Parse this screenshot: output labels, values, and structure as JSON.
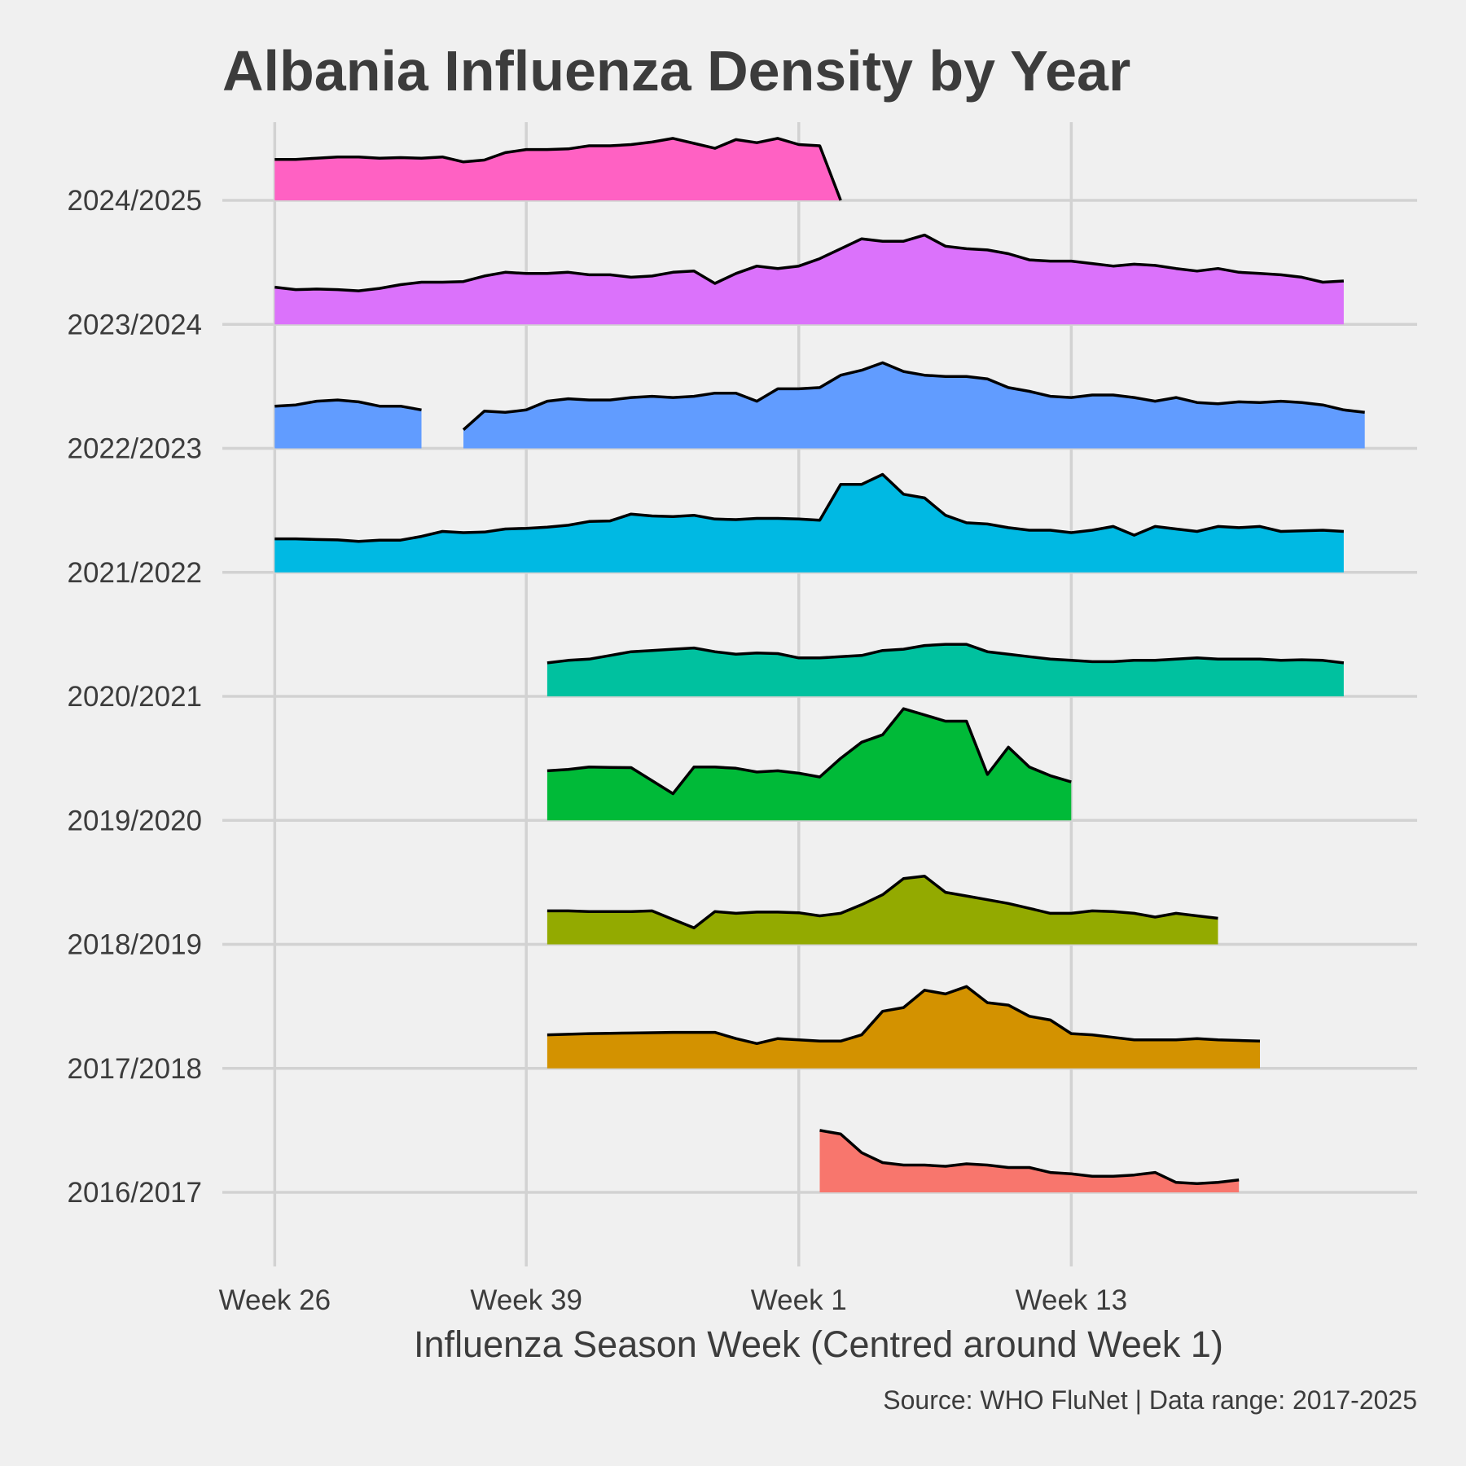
{
  "chart_data": {
    "type": "area",
    "title": "Albania Influenza Density by Year",
    "xlabel": "Influenza Season Week (Centred around Week 1)",
    "ylabel": "",
    "caption": "Source: WHO FluNet | Data range: 2017-2025",
    "x_ticks": [
      {
        "label": "Week 26",
        "index": 0
      },
      {
        "label": "Week 39",
        "index": 12
      },
      {
        "label": "Week 1",
        "index": 25
      },
      {
        "label": "Week 13",
        "index": 38
      }
    ],
    "x_range": [
      -2.5,
      54.5
    ],
    "ridge_height_units": [
      0,
      1.15
    ],
    "grid": true,
    "legend": "none",
    "series": [
      {
        "name": "2016/2017",
        "color": "#F8766D",
        "start": 26,
        "values": [
          0.5,
          0.47,
          0.32,
          0.24,
          0.22,
          0.22,
          0.21,
          0.23,
          0.22,
          0.2,
          0.2,
          0.16,
          0.15,
          0.13,
          0.13,
          0.14,
          0.16,
          0.08,
          0.07,
          0.08,
          0.1
        ]
      },
      {
        "name": "2017/2018",
        "color": "#D39200",
        "start": 13,
        "values": [
          0.27,
          null,
          0.28,
          null,
          0.285,
          null,
          0.29,
          null,
          0.29,
          0.24,
          0.2,
          0.24,
          0.23,
          0.22,
          0.22,
          0.27,
          0.46,
          0.49,
          0.63,
          0.6,
          0.66,
          0.53,
          0.51,
          0.42,
          0.39,
          0.28,
          0.27,
          0.25,
          0.23,
          0.23,
          0.23,
          0.24,
          0.23,
          0.225,
          0.22
        ]
      },
      {
        "name": "2018/2019",
        "color": "#93AA00",
        "start": 13,
        "values": [
          0.27,
          0.27,
          0.265,
          null,
          0.265,
          0.27,
          null,
          null,
          0.265,
          0.25,
          0.26,
          0.26,
          0.255,
          0.23,
          0.25,
          0.32,
          0.4,
          0.53,
          0.55,
          0.42,
          0.39,
          0.36,
          0.33,
          0.29,
          0.25,
          0.25,
          0.27,
          0.265,
          0.25,
          0.22,
          0.25,
          0.23,
          0.21
        ]
      },
      {
        "name": "2019/2020",
        "color": "#00BA38",
        "start": 13,
        "values": [
          0.4,
          0.41,
          0.43,
          null,
          0.425,
          null,
          null,
          0.43,
          0.43,
          0.42,
          0.39,
          0.4,
          0.38,
          0.35,
          0.5,
          0.63,
          0.69,
          0.9,
          0.85,
          0.8,
          0.8,
          0.37,
          0.59,
          0.43,
          0.36,
          0.31
        ]
      },
      {
        "name": "2020/2021",
        "color": "#00C19F",
        "start": 13,
        "values": [
          0.27,
          0.29,
          0.3,
          0.33,
          0.36,
          0.37,
          0.38,
          0.39,
          0.36,
          0.34,
          0.35,
          0.345,
          0.31,
          0.31,
          0.32,
          0.33,
          0.37,
          0.38,
          0.41,
          0.42,
          0.42,
          0.36,
          0.34,
          0.32,
          0.3,
          0.29,
          0.28,
          0.28,
          0.29,
          0.29,
          0.3,
          0.31,
          0.3,
          0.3,
          0.3,
          0.29,
          0.295,
          0.29,
          0.27
        ]
      },
      {
        "name": "2021/2022",
        "color": "#00B9E3",
        "start": 0,
        "values": [
          0.27,
          0.27,
          0.265,
          0.262,
          0.25,
          0.26,
          0.26,
          0.29,
          0.33,
          0.32,
          0.325,
          0.35,
          0.355,
          0.365,
          0.38,
          0.41,
          0.415,
          0.47,
          0.455,
          0.45,
          0.46,
          0.43,
          0.425,
          0.435,
          0.435,
          0.43,
          0.42,
          0.71,
          0.71,
          0.79,
          0.63,
          0.6,
          0.46,
          0.4,
          0.39,
          0.36,
          0.34,
          0.34,
          0.32,
          0.34,
          0.37,
          0.3,
          0.37,
          0.35,
          0.33,
          0.37,
          0.36,
          0.37,
          0.33,
          0.335,
          0.34,
          0.33
        ]
      },
      {
        "name": "2022/2023",
        "color": "#619CFF",
        "start": 0,
        "values": [
          0.34,
          0.35,
          0.38,
          0.39,
          0.375,
          0.34,
          0.34,
          0.31,
          null,
          null,
          0.3,
          0.29,
          0.31,
          0.38,
          0.4,
          0.39,
          0.39,
          0.41,
          0.42,
          0.41,
          0.42,
          0.445,
          0.445,
          0.38,
          0.48,
          0.48,
          0.49,
          0.59,
          0.63,
          0.69,
          0.62,
          0.59,
          0.58,
          0.58,
          0.56,
          0.49,
          0.46,
          0.42,
          0.41,
          0.43,
          0.43,
          0.41,
          0.38,
          0.41,
          0.37,
          0.36,
          0.375,
          0.37,
          0.38,
          0.37,
          0.35,
          0.31,
          0.29
        ]
      },
      {
        "name": "2023/2024",
        "color": "#DB72FB",
        "start": 0,
        "values": [
          0.3,
          0.28,
          0.285,
          0.28,
          0.27,
          0.29,
          0.32,
          0.34,
          0.34,
          0.345,
          0.39,
          0.42,
          0.41,
          0.41,
          0.42,
          0.4,
          0.4,
          0.38,
          0.39,
          0.42,
          0.43,
          0.33,
          0.41,
          0.47,
          0.45,
          0.47,
          0.53,
          0.61,
          0.69,
          0.67,
          0.67,
          0.72,
          0.63,
          0.61,
          0.6,
          0.57,
          0.52,
          0.51,
          0.51,
          0.49,
          0.47,
          0.485,
          0.475,
          0.45,
          0.43,
          0.45,
          0.42,
          0.41,
          0.4,
          0.38,
          0.34,
          0.35
        ]
      },
      {
        "name": "2024/2025",
        "color": "#FF61C3",
        "start": 0,
        "values": [
          0.33,
          0.33,
          0.34,
          0.35,
          0.35,
          0.34,
          0.345,
          0.34,
          0.35,
          0.31,
          0.325,
          0.385,
          0.41,
          0.41,
          0.415,
          0.44,
          0.44,
          0.45,
          0.47,
          0.5,
          0.46,
          0.42,
          0.49,
          0.465,
          0.5,
          0.45,
          0.44,
          0.0
        ]
      }
    ]
  }
}
